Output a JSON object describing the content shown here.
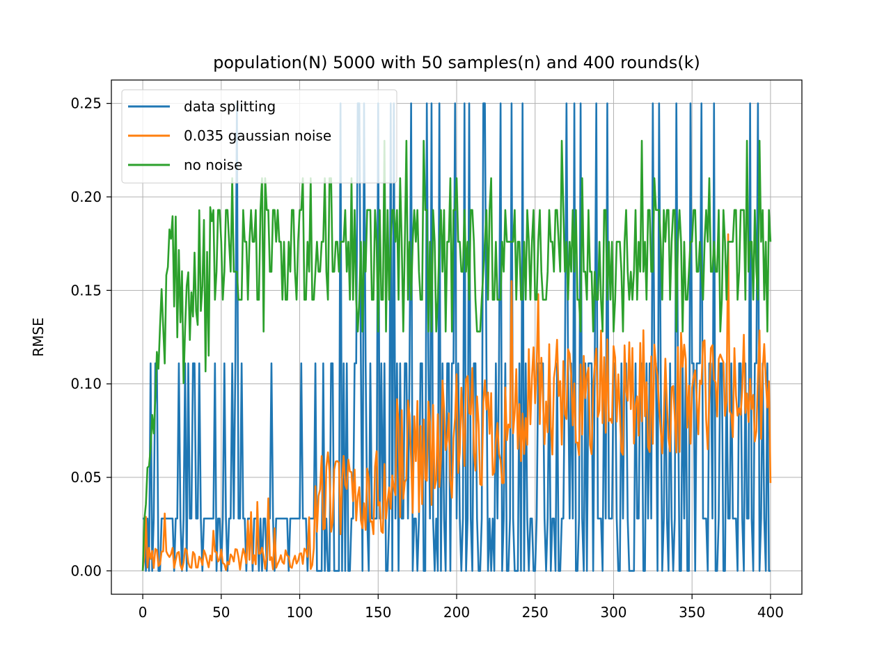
{
  "chart_data": {
    "type": "line",
    "title": "population(N) 5000 with 50 samples(n) and 400 rounds(k)",
    "xlabel": "",
    "ylabel": "RMSE",
    "xlim": [
      -20,
      420
    ],
    "ylim": [
      -0.0125,
      0.2625
    ],
    "xticks": [
      0,
      50,
      100,
      150,
      200,
      250,
      300,
      350,
      400
    ],
    "xtick_labels": [
      "0",
      "50",
      "100",
      "150",
      "200",
      "250",
      "300",
      "350",
      "400"
    ],
    "yticks": [
      0.0,
      0.05,
      0.1,
      0.15,
      0.2,
      0.25
    ],
    "ytick_labels": [
      "0.00",
      "0.05",
      "0.10",
      "0.15",
      "0.20",
      "0.25"
    ],
    "grid": true,
    "legend_position": "top-left",
    "n_points": 401,
    "series": [
      {
        "name": "data splitting",
        "color": "#1f77b4",
        "summary": "alternates between 0.0, ~0.028 and ~0.111 with spikes to 0.25; mostly 0.028/0.111 early, many 0.25 spikes after 120"
      },
      {
        "name": "0.035 gaussian noise",
        "color": "#ff7f0e",
        "summary": "near 0 (0-0.02) up to ~110, rising noisily to 0.02-0.14 range, peak ~0.18 near 373"
      },
      {
        "name": "no noise",
        "color": "#2ca02c",
        "summary": "starts 0, rises to ~0.1-0.16 by 15, then fluctuates 0.13-0.21 with peaks ~0.23"
      }
    ]
  }
}
